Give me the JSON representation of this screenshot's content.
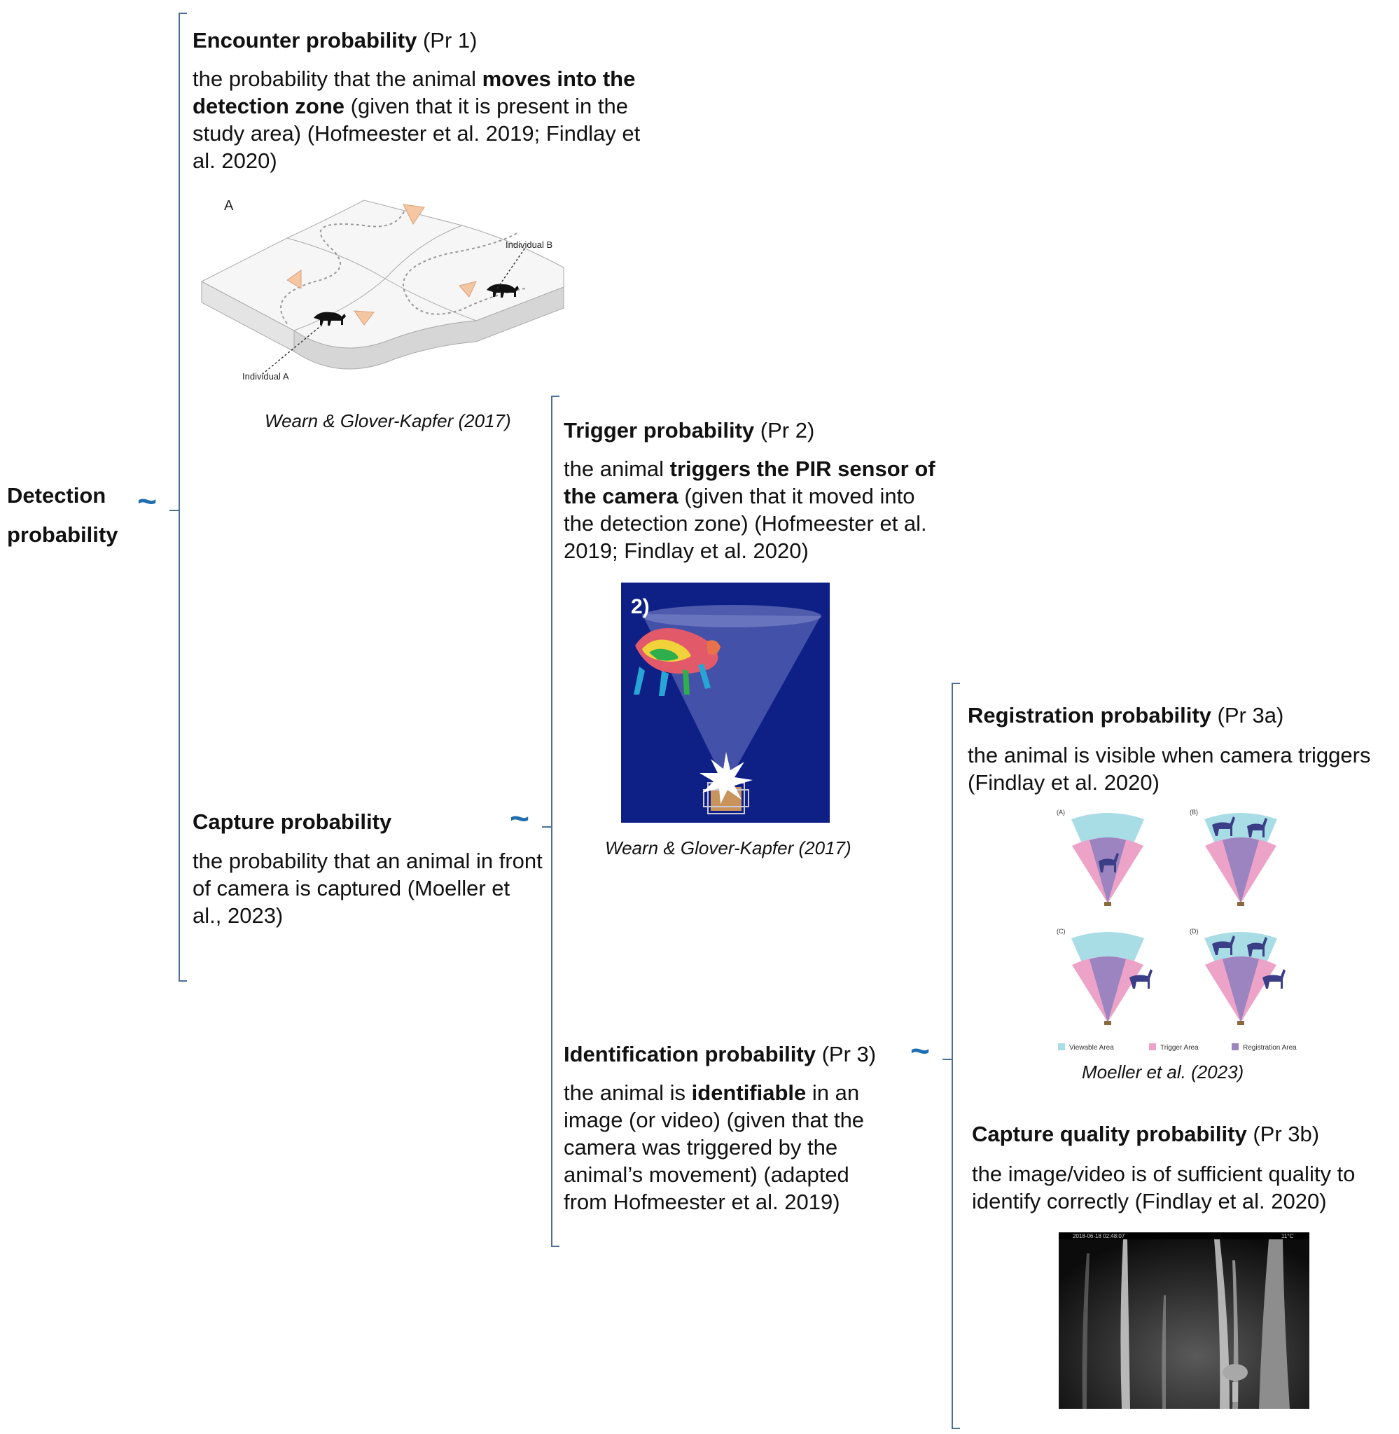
{
  "root": {
    "line1": "Detection",
    "line2": "probability"
  },
  "pr1": {
    "title_bold": "Encounter probability",
    "title_tag": " (Pr 1)",
    "desc_a": "the probability that the animal ",
    "desc_b": "moves into the detection zone",
    "desc_c": " (given that it is present in the study area) (Hofmeester et al. 2019; Findlay et al. 2020)",
    "figure": {
      "panel_label": "A",
      "label_a": "Individual A",
      "label_b": "Individual B"
    },
    "citation": "Wearn & Glover-Kapfer (2017)"
  },
  "capture": {
    "title_bold": "Capture probability",
    "desc": "the probability that an animal in front of camera is captured (Moeller et al., 2023)"
  },
  "pr2": {
    "title_bold": "Trigger probability",
    "title_tag": " (Pr 2)",
    "desc_a": "the animal ",
    "desc_b": "triggers the PIR sensor of the camera",
    "desc_c": " (given that it moved into the detection zone) (Hofmeester et al. 2019; Findlay et al. 2020)",
    "figure": {
      "panel_label": "2)"
    },
    "citation": "Wearn & Glover-Kapfer (2017)"
  },
  "pr3": {
    "title_bold": "Identification probability",
    "title_tag": " (Pr 3)",
    "desc_a": "the animal is ",
    "desc_b": "identifiable",
    "desc_c": " in an image (or video) (given that the camera was triggered by the animal’s movement) (adapted from Hofmeester et al. 2019)"
  },
  "pr3a": {
    "title_bold": "Registration probability",
    "title_tag": " (Pr 3a)",
    "desc": "the animal is visible when camera triggers (Findlay et al. 2020)",
    "figure": {
      "panels": [
        "(A)",
        "(B)",
        "(C)",
        "(D)"
      ],
      "legend": [
        "Viewable Area",
        "Trigger Area",
        "Registration Area"
      ]
    },
    "citation": "Moeller et al. (2023)"
  },
  "pr3b": {
    "title_bold": "Capture quality probability",
    "title_tag": " (Pr 3b)",
    "desc": "the image/video is of sufficient quality to identify correctly (Findlay et al. 2020)",
    "photo": {
      "timestamp": "2018-06-18 02:48:07",
      "info": "11°C"
    }
  },
  "colors": {
    "bracket": "#4d6f96",
    "tilde": "#1f6fb0",
    "viewable": "#a9dde6",
    "trigger": "#eda3c8",
    "registration": "#9b84bf",
    "animal": "#3b3e86",
    "thermal_bg": "#0e1f86"
  }
}
